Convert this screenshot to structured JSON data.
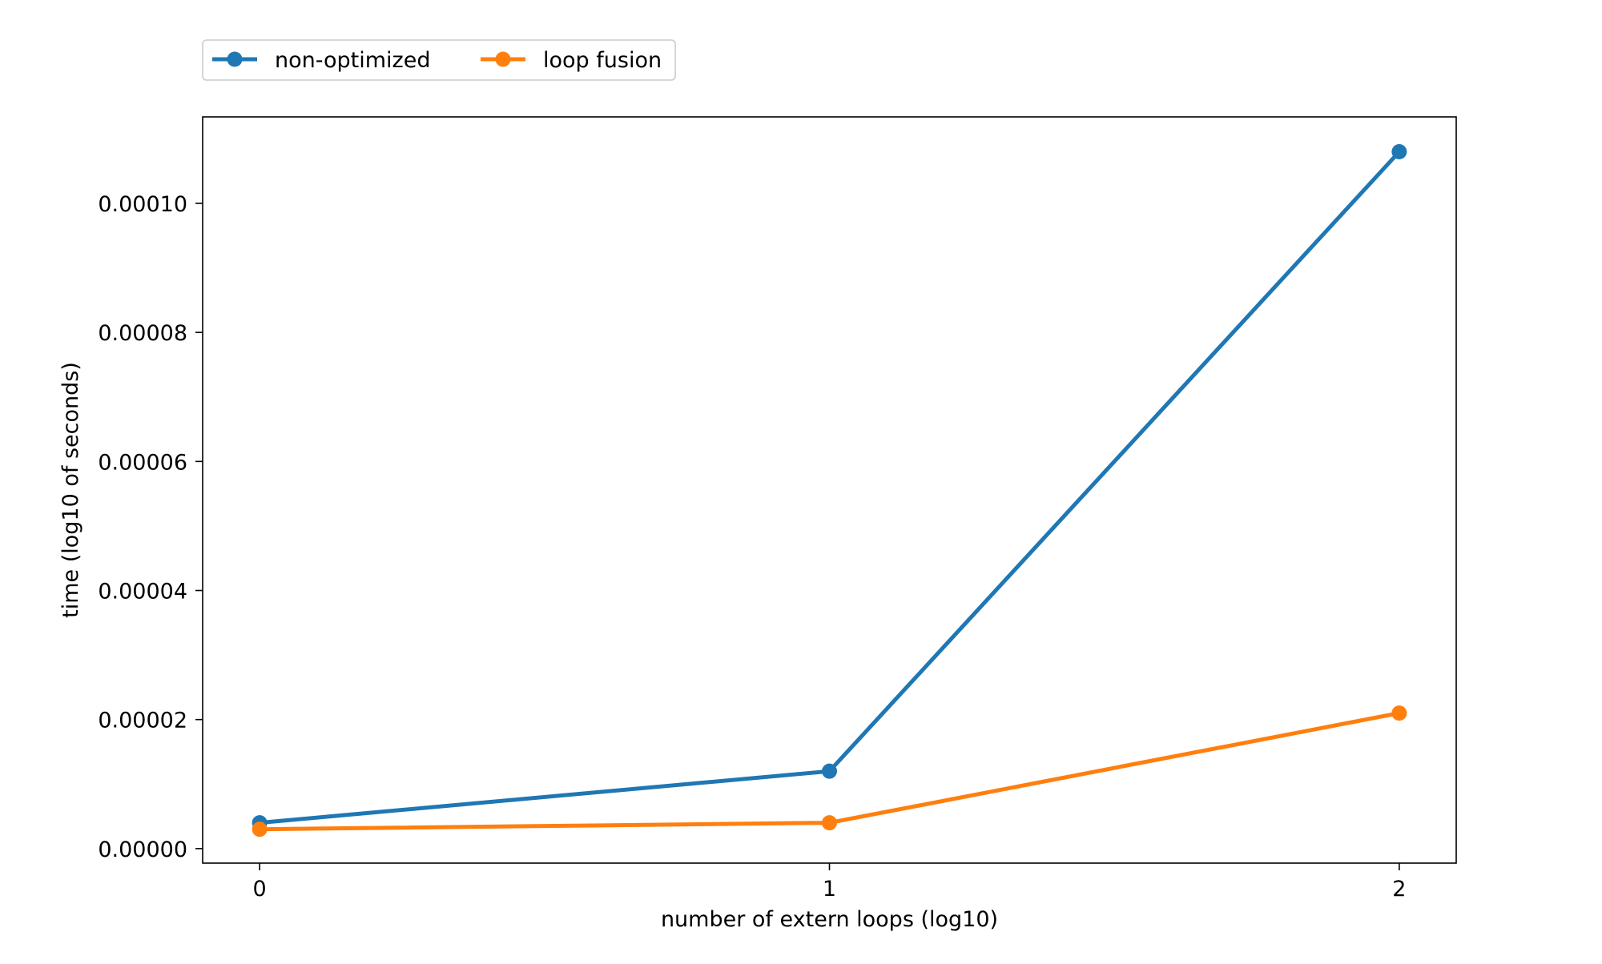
{
  "chart_data": {
    "type": "line",
    "x": [
      0,
      1,
      2
    ],
    "series": [
      {
        "name": "non-optimized",
        "values": [
          4e-06,
          1.2e-05,
          0.000108
        ],
        "color": "#1f77b4"
      },
      {
        "name": "loop fusion",
        "values": [
          3e-06,
          4e-06,
          2.1e-05
        ],
        "color": "#ff7f0e"
      }
    ],
    "xlabel": "number of extern loops (log10)",
    "ylabel": "time (log10 of seconds)",
    "xlim": [
      -0.1,
      2.1
    ],
    "ylim": [
      -2.25e-06,
      0.0001134
    ],
    "x_ticks": [
      0,
      1,
      2
    ],
    "x_tick_labels": [
      "0",
      "1",
      "2"
    ],
    "y_ticks": [
      0,
      2e-05,
      4e-05,
      6e-05,
      8e-05,
      0.0001
    ],
    "y_tick_labels": [
      "0.00000",
      "0.00002",
      "0.00004",
      "0.00006",
      "0.00008",
      "0.00010"
    ],
    "grid": false,
    "legend_position": "top-left, above plot"
  }
}
